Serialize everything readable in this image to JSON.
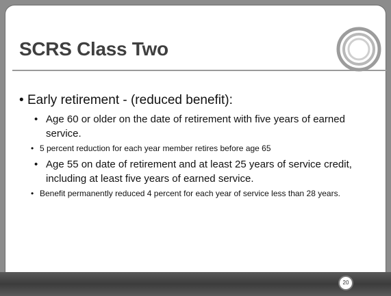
{
  "title": "SCRS Class Two",
  "bullets": [
    {
      "text": "Early retirement - (reduced benefit):",
      "items": [
        {
          "text": "Age 60 or older on the date of retirement with five years of earned service.",
          "items": [
            {
              "text": "5 percent reduction for each year member retires before age 65"
            }
          ]
        },
        {
          "text": "Age 55 on date of retirement and at least 25 years of service credit, including at least five years of earned service.",
          "items": [
            {
              "text": "Benefit permanently reduced 4 percent for each year of service less than 28 years."
            }
          ]
        }
      ]
    }
  ],
  "page_number": "20"
}
